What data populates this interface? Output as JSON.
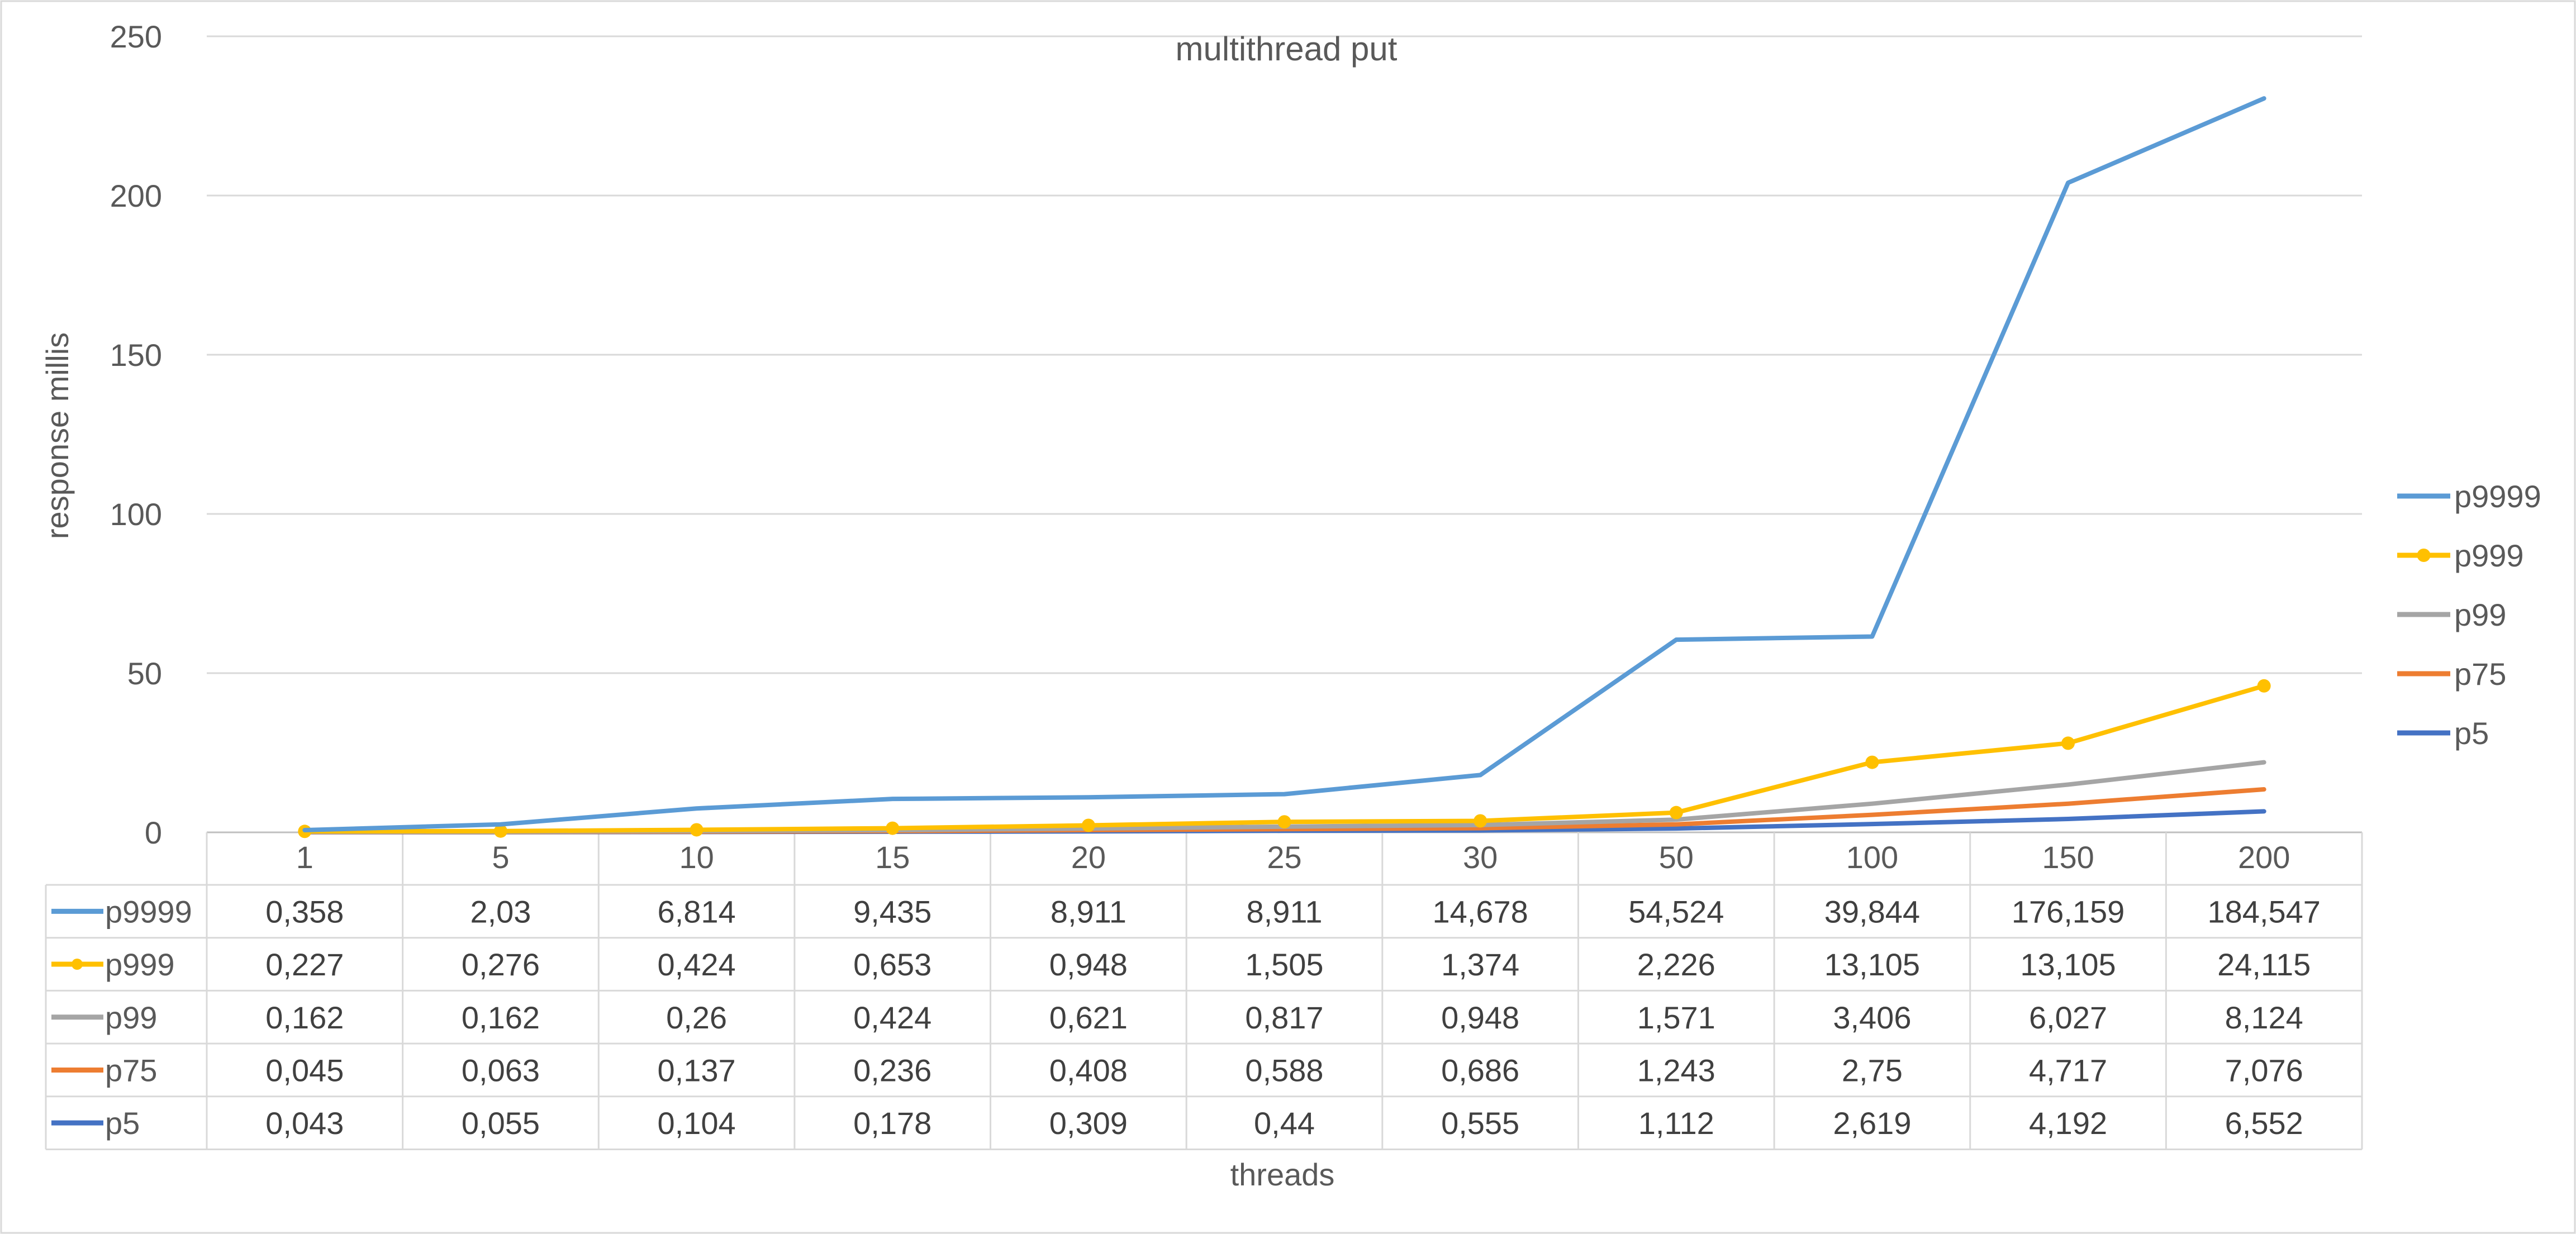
{
  "chart_data": {
    "type": "line",
    "title": "multithread put",
    "xlabel": "threads",
    "ylabel": "response millis",
    "categories": [
      "1",
      "5",
      "10",
      "15",
      "20",
      "25",
      "30",
      "50",
      "100",
      "150",
      "200"
    ],
    "ylim": [
      0,
      250
    ],
    "yticks": [
      "0",
      "50",
      "100",
      "150",
      "200",
      "250"
    ],
    "grid": "horizontal",
    "legend_position": "right",
    "series": [
      {
        "name": "p9999",
        "color": "#5b9bd5",
        "marker": false,
        "plot_values": [
          0.7,
          2.5,
          7.5,
          10.5,
          11,
          12,
          18,
          60.5,
          61.5,
          204,
          230.5
        ],
        "table_values": [
          "0,358",
          "2,03",
          "6,814",
          "9,435",
          "8,911",
          "8,911",
          "14,678",
          "54,524",
          "39,844",
          "176,159",
          "184,547"
        ]
      },
      {
        "name": "p999",
        "color": "#ffc000",
        "marker": true,
        "plot_values": [
          0.3,
          0.4,
          0.8,
          1.3,
          2.2,
          3.3,
          3.6,
          6.2,
          22,
          28,
          46
        ],
        "table_values": [
          "0,227",
          "0,276",
          "0,424",
          "0,653",
          "0,948",
          "1,505",
          "1,374",
          "2,226",
          "13,105",
          "13,105",
          "24,115"
        ]
      },
      {
        "name": "p99",
        "color": "#a5a5a5",
        "marker": false,
        "plot_values": [
          0.2,
          0.2,
          0.4,
          0.7,
          1.2,
          1.8,
          2.3,
          4,
          9,
          15,
          22
        ],
        "table_values": [
          "0,162",
          "0,162",
          "0,26",
          "0,424",
          "0,621",
          "0,817",
          "0,948",
          "1,571",
          "3,406",
          "6,027",
          "8,124"
        ]
      },
      {
        "name": "p75",
        "color": "#ed7d31",
        "marker": false,
        "plot_values": [
          0.1,
          0.1,
          0.2,
          0.4,
          0.7,
          1,
          1.3,
          2.5,
          5.5,
          9,
          13.5
        ],
        "table_values": [
          "0,045",
          "0,063",
          "0,137",
          "0,236",
          "0,408",
          "0,588",
          "0,686",
          "1,243",
          "2,75",
          "4,717",
          "7,076"
        ]
      },
      {
        "name": "p5",
        "color": "#4472c4",
        "marker": false,
        "plot_values": [
          0.05,
          0.05,
          0.1,
          0.2,
          0.3,
          0.5,
          0.6,
          1.2,
          2.6,
          4.2,
          6.6
        ],
        "table_values": [
          "0,043",
          "0,055",
          "0,104",
          "0,178",
          "0,309",
          "0,44",
          "0,555",
          "1,112",
          "2,619",
          "4,192",
          "6,552"
        ]
      }
    ]
  }
}
